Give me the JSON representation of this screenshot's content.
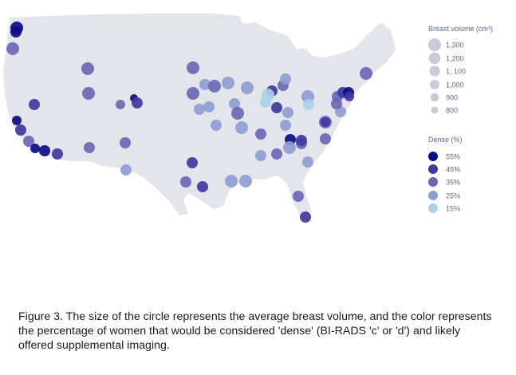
{
  "legend": {
    "size_title": "Breast volume (cm³)",
    "size_items": [
      {
        "label": "1,300",
        "value": 1300
      },
      {
        "label": "1,200",
        "value": 1200
      },
      {
        "label": "1, 100",
        "value": 1100
      },
      {
        "label": "1,000",
        "value": 1000
      },
      {
        "label": "900",
        "value": 900
      },
      {
        "label": "800",
        "value": 800
      }
    ],
    "color_title": "Dense (%)",
    "color_items": [
      {
        "label": "55%",
        "value": 55
      },
      {
        "label": "45%",
        "value": 45
      },
      {
        "label": "35%",
        "value": 35
      },
      {
        "label": "25%",
        "value": 25
      },
      {
        "label": "15%",
        "value": 15
      }
    ]
  },
  "colors": {
    "land": "#e3e5ea",
    "size_legend": "#c7ccd6",
    "dense_55": "#0d0c86",
    "dense_45": "#3f3a9e",
    "dense_35": "#6b67b5",
    "dense_25": "#8f9ed2",
    "dense_15": "#a9d2e6"
  },
  "caption": "Figure 3. The size of the circle represents the average breast volume, and the color represents the percentage of women that would be considered 'dense' (BI-RADS 'c' or 'd') and likely offered supplemental imaging."
}
